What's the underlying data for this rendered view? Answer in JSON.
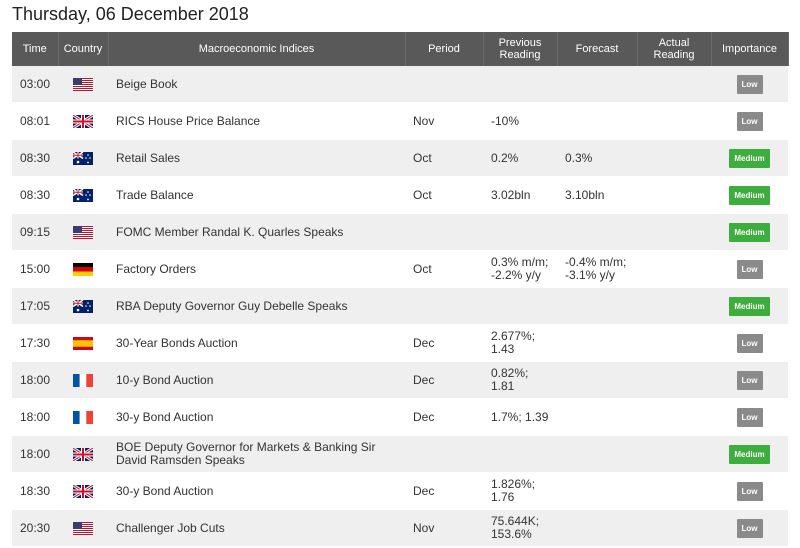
{
  "title": "Thursday, 06 December 2018",
  "table": {
    "columns": [
      "Time",
      "Country",
      "Macroeconomic Indices",
      "Period",
      "Previous\nReading",
      "Forecast",
      "Actual\nReading",
      "Importance"
    ],
    "rows": [
      {
        "time": "03:00",
        "event": "Beige Book",
        "importance": "Low"
      },
      {
        "time": "08:01",
        "event": "RICS House Price Balance",
        "period": "Nov",
        "previous": "-10%",
        "importance": "Low"
      },
      {
        "time": "08:30",
        "event": "Retail Sales",
        "period": "Oct",
        "previous": "0.2%",
        "forecast": "0.3%",
        "importance": "Medium"
      },
      {
        "time": "08:30",
        "event": "Trade Balance",
        "period": "Oct",
        "previous": "3.02bln",
        "forecast": "3.10bln",
        "importance": "Medium"
      },
      {
        "time": "09:15",
        "event": "FOMC Member Randal K. Quarles Speaks",
        "importance": "Medium"
      },
      {
        "time": "15:00",
        "event": "Factory Orders",
        "period": "Oct",
        "previous": "0.3% m/m;\n-2.2% y/y",
        "forecast": "-0.4% m/m;\n-3.1% y/y",
        "importance": "Low"
      },
      {
        "time": "17:05",
        "event": "RBA Deputy Governor Guy Debelle Speaks",
        "importance": "Medium"
      },
      {
        "time": "17:30",
        "event": "30-Year Bonds Auction",
        "period": "Dec",
        "previous": "2.677%;\n1.43",
        "importance": "Low"
      },
      {
        "time": "18:00",
        "event": "10-y Bond Auction",
        "period": "Dec",
        "previous": "0.82%;\n1.81",
        "importance": "Low"
      },
      {
        "time": "18:00",
        "event": "30-y Bond Auction",
        "period": "Dec",
        "previous": "1.7%; 1.39",
        "importance": "Low"
      },
      {
        "time": "18:00",
        "event": "BOE Deputy Governor for Markets & Banking Sir\nDavid Ramsden Speaks",
        "importance": "Medium"
      },
      {
        "time": "18:30",
        "event": "30-y Bond Auction",
        "period": "Dec",
        "previous": "1.826%;\n1.76",
        "importance": "Low"
      },
      {
        "time": "20:30",
        "event": "Challenger Job Cuts",
        "period": "Nov",
        "previous": "75.644K;\n153.6%",
        "importance": "Low"
      }
    ]
  }
}
